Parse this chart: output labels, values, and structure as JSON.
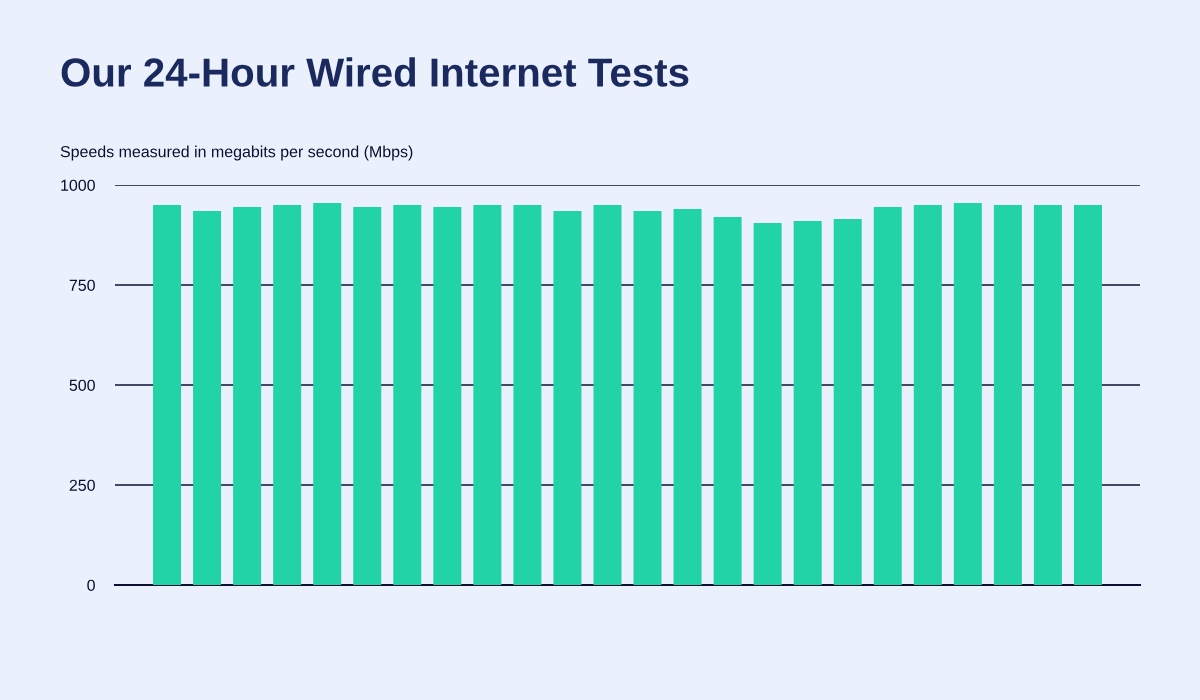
{
  "chart_data": {
    "type": "bar",
    "title": "Our 24-Hour Wired Internet Tests",
    "ylabel": "Speeds measured in megabits per second (Mbps)",
    "categories": [
      null,
      null,
      null,
      null,
      null,
      null,
      null,
      null,
      null,
      null,
      null,
      null,
      null,
      null,
      null,
      null,
      null,
      null,
      null,
      null,
      null,
      null,
      null,
      null
    ],
    "values": [
      950,
      935,
      945,
      950,
      955,
      945,
      950,
      945,
      950,
      950,
      935,
      950,
      935,
      940,
      920,
      905,
      910,
      915,
      945,
      950,
      955,
      950,
      950,
      950
    ],
    "color": "#22d3a6",
    "ylim": [
      0,
      1000
    ],
    "yticks": [
      0,
      250,
      500,
      750,
      1000
    ],
    "grid": "y",
    "tick_labels": "y"
  }
}
